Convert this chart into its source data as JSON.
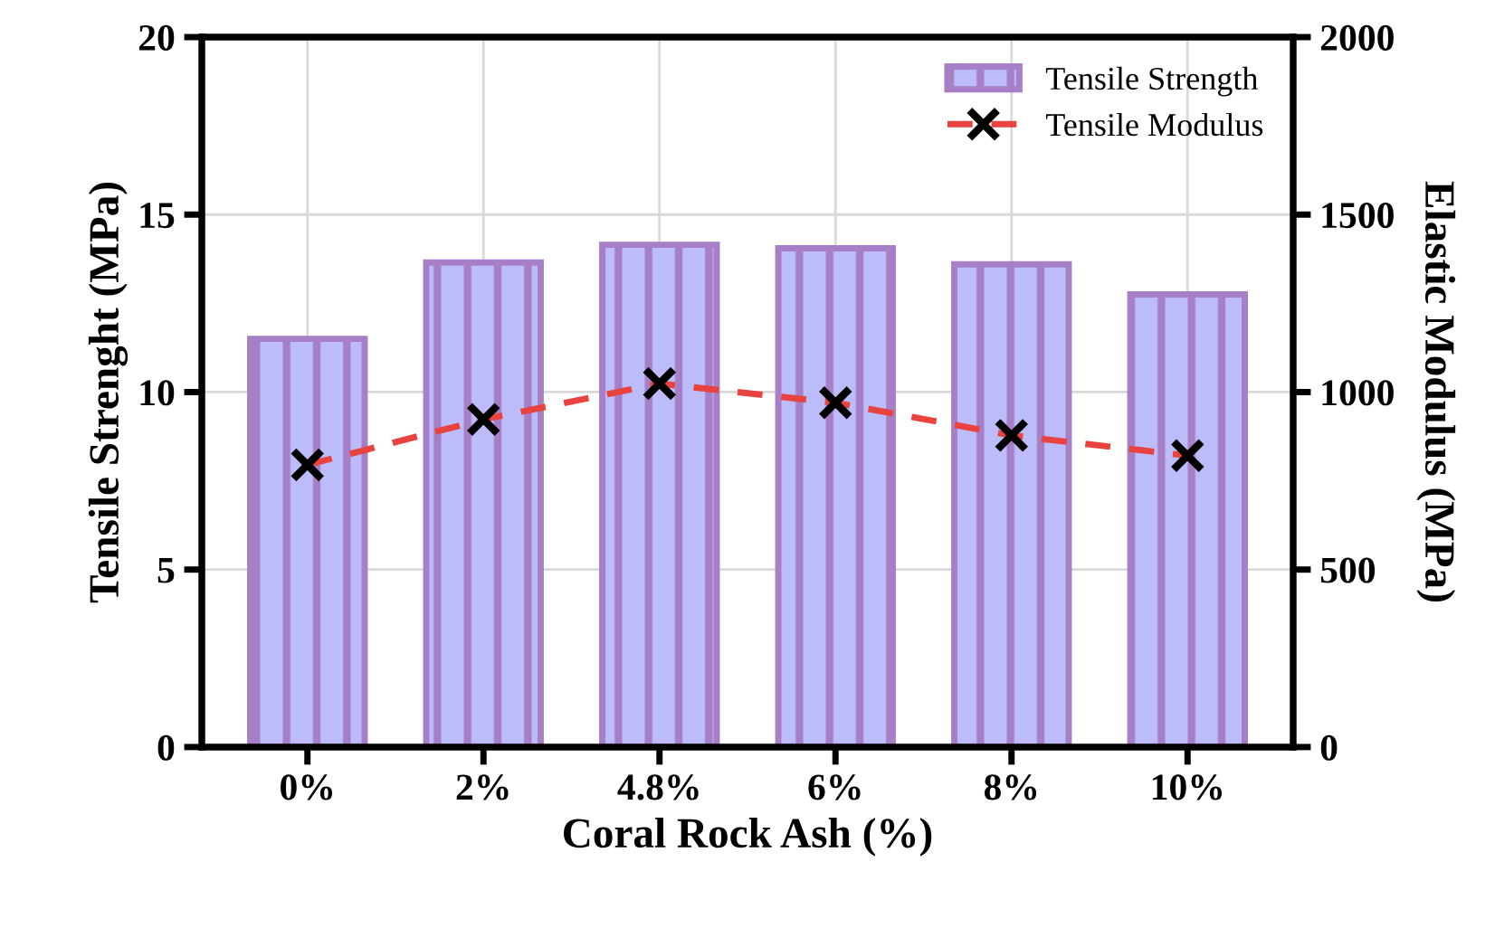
{
  "chart_data": {
    "type": "bar",
    "xlabel": "Coral Rock Ash (%)",
    "ylabel": "Tensile Strenght (MPa)",
    "y2label": "Elastic Modulus (MPa)",
    "categories": [
      "0%",
      "2%",
      "4.8%",
      "6%",
      "8%",
      "10%"
    ],
    "series": [
      {
        "name": "Tensile Strength",
        "color": "#a77fc6",
        "values": [
          11.5,
          13.65,
          14.15,
          14.05,
          13.6,
          12.75
        ]
      },
      {
        "name": "Tensile Modulus",
        "type": "line",
        "axis": "y2",
        "color": "#e8433f",
        "marker": "cross",
        "line_style": "dashed",
        "values": [
          795,
          923,
          1024,
          970,
          878,
          821
        ]
      }
    ],
    "ylim": [
      0,
      20
    ],
    "yticks": [
      0,
      5,
      10,
      15,
      20
    ],
    "y2lim": [
      0,
      2000
    ],
    "y2ticks": [
      0,
      500,
      1000,
      1500,
      2000
    ],
    "grid": true,
    "legend": "top right"
  }
}
